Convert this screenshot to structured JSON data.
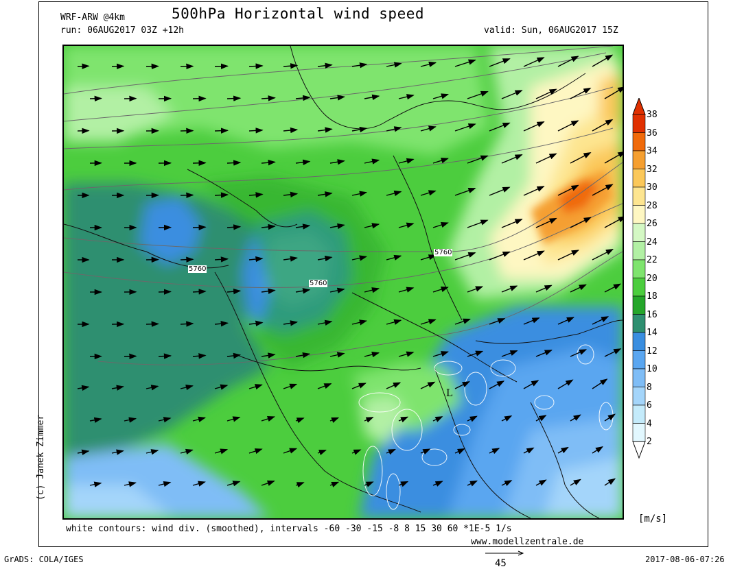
{
  "header": {
    "model": "WRF-ARW @4km",
    "title": "500hPa Horizontal wind speed",
    "run": "run: 06AUG2017 03Z +12h",
    "valid": "valid: Sun, 06AUG2017 15Z"
  },
  "author": "(c) Janek Zimmer",
  "colorbar": {
    "units": "[m/s]",
    "labels": [
      "38",
      "36",
      "34",
      "32",
      "30",
      "28",
      "26",
      "24",
      "22",
      "20",
      "18",
      "16",
      "14",
      "12",
      "10",
      "8",
      "6",
      "4",
      "2"
    ],
    "colors": [
      "#e03000",
      "#f06a0a",
      "#f59f30",
      "#fbc85a",
      "#fde590",
      "#fef7c2",
      "#d4f8c4",
      "#b2f0a4",
      "#7fe46e",
      "#4ccd3e",
      "#25a62a",
      "#2e8f70",
      "#3a8ee0",
      "#5aa6f0",
      "#7fbdf6",
      "#a4d5fa",
      "#c4ebfb",
      "#e2f8ff"
    ],
    "top_arrow_color": "#e03000",
    "bottom_arrow_color": "#ffffff"
  },
  "map": {
    "isohypse_labels": [
      "5760",
      "5760",
      "5760"
    ],
    "low_label": "L"
  },
  "footer": {
    "note": "white contours: wind div. (smoothed), intervals -60 -30 -15 -8 8 15 30 60 *1E-5 1/s",
    "website": "www.modellzentrale.de",
    "software": "GrADS: COLA/IGES",
    "timestamp": "2017-08-06-07:26",
    "reference_vector": "45"
  }
}
